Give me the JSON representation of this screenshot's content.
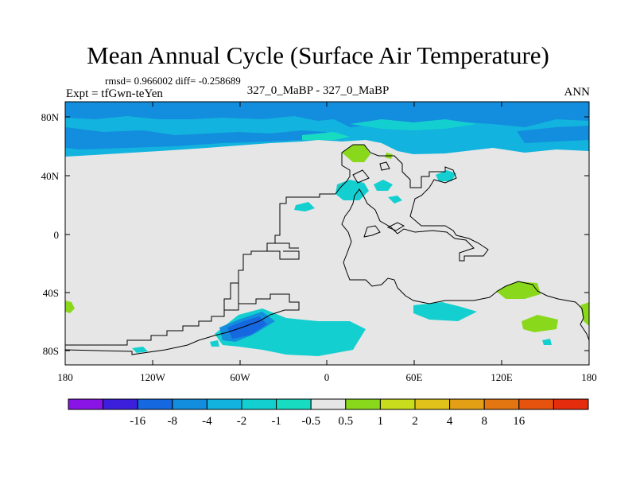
{
  "title": "Mean Annual Cycle (Surface Air Temperature)",
  "stats": "rmsd= 0.966002 diff= -0.258689",
  "expt": "Expt = tfGwn-teYen",
  "center_label": "327_0_MaBP - 327_0_MaBP",
  "season": "ANN",
  "lat_ticks": [
    "80N",
    "40N",
    "0",
    "40S",
    "80S"
  ],
  "lon_ticks": [
    "180",
    "120W",
    "60W",
    "0",
    "60E",
    "120E",
    "180"
  ],
  "colorbar": {
    "colors": [
      "#8a13e6",
      "#3c1fdc",
      "#1668e0",
      "#138ddd",
      "#12b3de",
      "#14cfd0",
      "#18dcc2",
      "#e6e6e6",
      "#8ad81b",
      "#c8de1d",
      "#e0c21a",
      "#e3a014",
      "#e47611",
      "#e5530e",
      "#e52c0c"
    ],
    "labels": [
      "-16",
      "-8",
      "-4",
      "-2",
      "-1",
      "-0.5",
      "0.5",
      "1",
      "2",
      "4",
      "8",
      "16"
    ]
  },
  "chart_data": {
    "type": "map",
    "title": "Mean Annual Cycle (Surface Air Temperature)",
    "variable": "Surface Air Temperature difference",
    "season": "ANN",
    "rmsd": 0.966002,
    "diff": -0.258689,
    "lat_range": [
      -90,
      90
    ],
    "lon_range": [
      -180,
      180
    ],
    "contour_levels": [
      -16,
      -8,
      -4,
      -2,
      -1,
      -0.5,
      0.5,
      1,
      2,
      4,
      8,
      16
    ]
  }
}
